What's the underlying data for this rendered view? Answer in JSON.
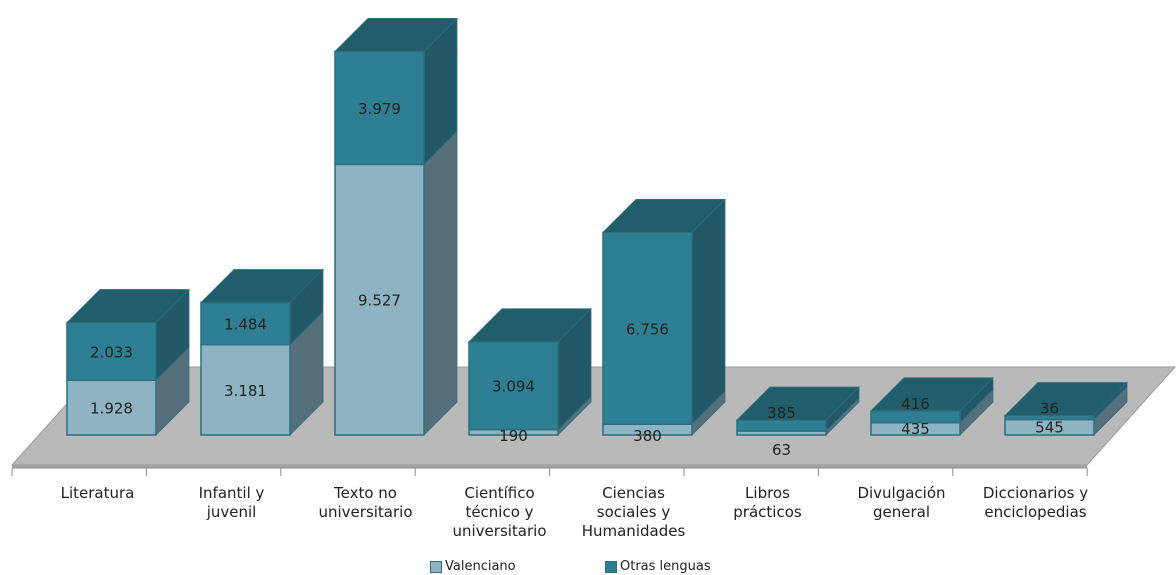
{
  "chart_data": {
    "type": "bar",
    "stacked": true,
    "three_d": true,
    "title": "",
    "xlabel": "",
    "ylabel": "",
    "categories": [
      [
        "Literatura"
      ],
      [
        "Infantil y",
        "juvenil"
      ],
      [
        "Texto no",
        "universitario"
      ],
      [
        "Científico",
        "técnico y",
        "universitario"
      ],
      [
        "Ciencias",
        "sociales y",
        "Humanidades"
      ],
      [
        "Libros",
        "prácticos"
      ],
      [
        "Divulgación",
        "general"
      ],
      [
        "Diccionarios y",
        "enciclopedias"
      ]
    ],
    "series": [
      {
        "name": "Valenciano",
        "color": "#8eb4c3",
        "values": [
          1928,
          3181,
          9527,
          190,
          380,
          63,
          435,
          545
        ],
        "labels": [
          "1.928",
          "3.181",
          "9.527",
          "190",
          "380",
          "63",
          "435",
          "545"
        ]
      },
      {
        "name": "Otras lenguas",
        "color": "#2e7f93",
        "values": [
          2033,
          1484,
          3979,
          3094,
          6756,
          385,
          416,
          36
        ],
        "labels": [
          "2.033",
          "1.484",
          "3.979",
          "3.094",
          "6.756",
          "385",
          "416",
          "36"
        ]
      }
    ],
    "legend_position": "bottom",
    "grid": false
  }
}
